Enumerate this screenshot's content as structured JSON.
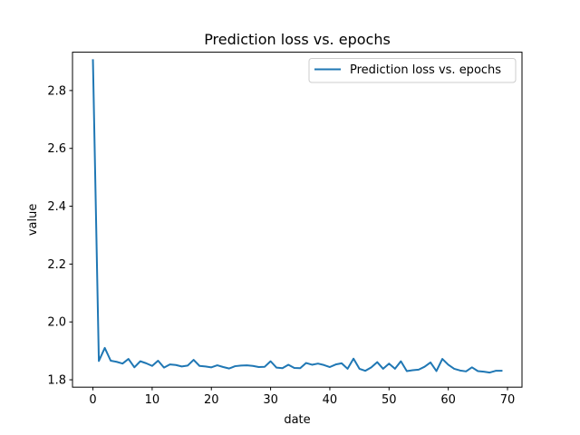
{
  "chart_data": {
    "type": "line",
    "title": "Prediction loss vs. epochs",
    "xlabel": "date",
    "ylabel": "value",
    "xlim": [
      -3.45,
      72.45
    ],
    "ylim": [
      1.7745,
      2.9325
    ],
    "xticks": [
      0,
      10,
      20,
      30,
      40,
      50,
      60,
      70
    ],
    "yticks": [
      1.8,
      2.0,
      2.2,
      2.4,
      2.6,
      2.8
    ],
    "ytick_labels": [
      "1.8",
      "2.0",
      "2.2",
      "2.4",
      "2.6",
      "2.8"
    ],
    "legend": {
      "placement": "top-right"
    },
    "grid": false,
    "series": [
      {
        "name": "Prediction loss vs. epochs",
        "color": "#1f77b4",
        "x": [
          0,
          1,
          2,
          3,
          4,
          5,
          6,
          7,
          8,
          9,
          10,
          11,
          12,
          13,
          14,
          15,
          16,
          17,
          18,
          19,
          20,
          21,
          22,
          23,
          24,
          25,
          26,
          27,
          28,
          29,
          30,
          31,
          32,
          33,
          34,
          35,
          36,
          37,
          38,
          39,
          40,
          41,
          42,
          43,
          44,
          45,
          46,
          47,
          48,
          49,
          50,
          51,
          52,
          53,
          54,
          55,
          56,
          57,
          58,
          59,
          60,
          61,
          62,
          63,
          64,
          65,
          66,
          67,
          68,
          69
        ],
        "values": [
          2.905,
          1.865,
          1.91,
          1.866,
          1.862,
          1.856,
          1.872,
          1.843,
          1.864,
          1.857,
          1.848,
          1.866,
          1.842,
          1.853,
          1.851,
          1.846,
          1.849,
          1.869,
          1.848,
          1.846,
          1.843,
          1.85,
          1.844,
          1.839,
          1.847,
          1.849,
          1.85,
          1.848,
          1.844,
          1.845,
          1.864,
          1.842,
          1.84,
          1.852,
          1.841,
          1.84,
          1.858,
          1.852,
          1.856,
          1.851,
          1.844,
          1.853,
          1.857,
          1.838,
          1.873,
          1.838,
          1.831,
          1.843,
          1.861,
          1.838,
          1.856,
          1.838,
          1.864,
          1.83,
          1.833,
          1.835,
          1.845,
          1.86,
          1.83,
          1.872,
          1.852,
          1.838,
          1.832,
          1.829,
          1.843,
          1.83,
          1.828,
          1.825,
          1.831,
          1.831
        ]
      }
    ]
  }
}
